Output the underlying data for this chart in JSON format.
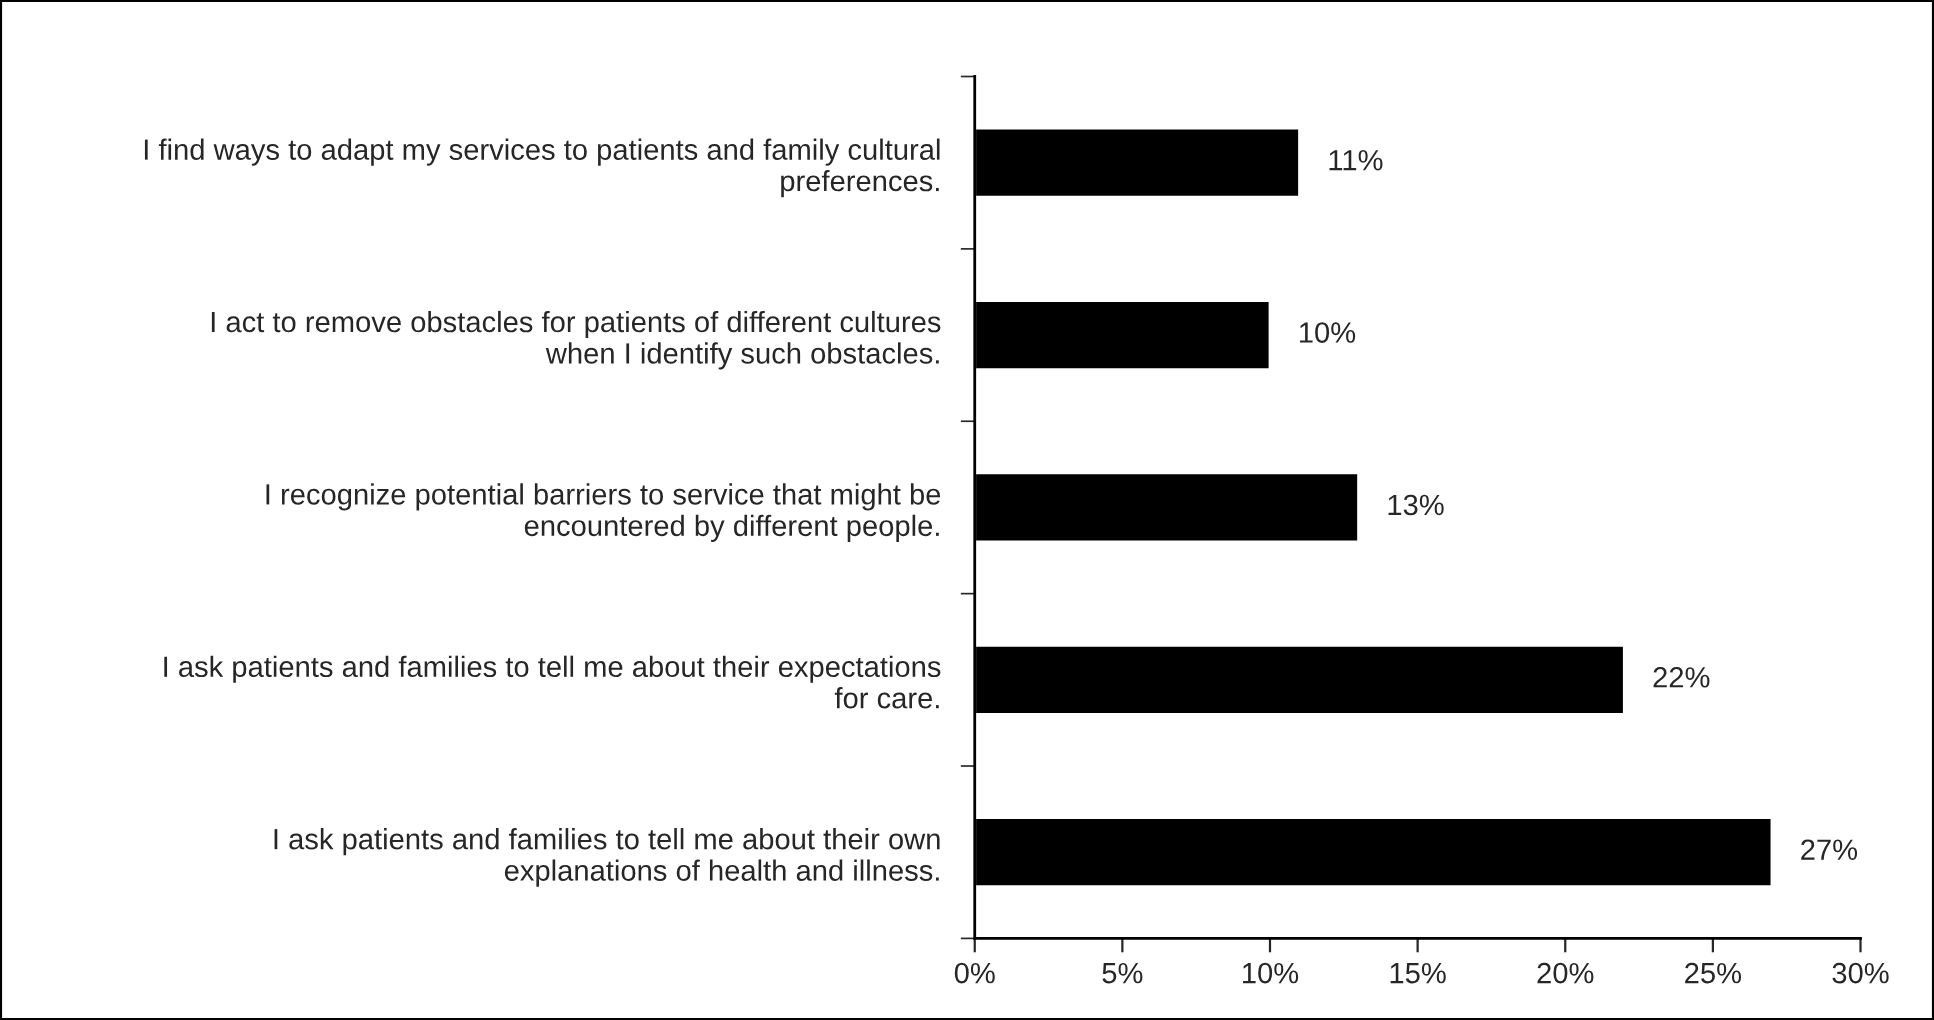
{
  "chart_data": {
    "type": "bar",
    "orientation": "horizontal",
    "categories": [
      "I find ways to adapt my services to patients and family cultural\npreferences.",
      "I act to remove obstacles for patients of different cultures\nwhen I identify such obstacles.",
      "I recognize potential barriers to service that might be\nencountered by different people.",
      "I ask patients and families to tell me about their expectations\nfor care.",
      "I ask patients and families to tell me about their own\nexplanations of health and illness."
    ],
    "values": [
      11,
      10,
      13,
      22,
      27
    ],
    "value_labels": [
      "11%",
      "10%",
      "13%",
      "22%",
      "27%"
    ],
    "color": "#000000",
    "xlim": [
      0,
      30
    ],
    "xticks": [
      {
        "value": 0,
        "label": "0%"
      },
      {
        "value": 5,
        "label": "5%"
      },
      {
        "value": 10,
        "label": "10%"
      },
      {
        "value": 15,
        "label": "15%"
      },
      {
        "value": 20,
        "label": "20%"
      },
      {
        "value": 25,
        "label": "25%"
      },
      {
        "value": 30,
        "label": "30%"
      }
    ],
    "grid": false,
    "legend": false
  }
}
